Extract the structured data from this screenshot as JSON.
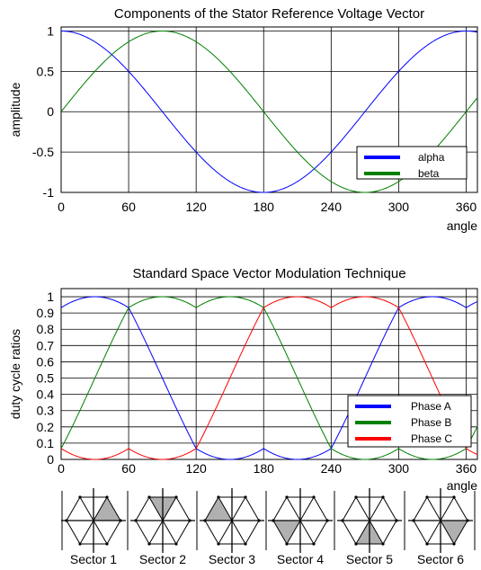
{
  "chart_data": [
    {
      "type": "line",
      "title": "Components of the Stator Reference Voltage Vector",
      "xlabel": "angle",
      "ylabel": "amplitude",
      "xlim": [
        0,
        370
      ],
      "ylim": [
        -1,
        1.05
      ],
      "xticks": [
        "0",
        "60",
        "120",
        "180",
        "240",
        "300",
        "360"
      ],
      "yticks": [
        "1",
        "0.5",
        "0",
        "-0.5",
        "-1"
      ],
      "grid": true,
      "legend_position": "bottom-right",
      "x": [
        0,
        30,
        60,
        90,
        120,
        150,
        180,
        210,
        240,
        270,
        300,
        330,
        360
      ],
      "series": [
        {
          "name": "alpha",
          "color": "#0000ff",
          "values": [
            1,
            0.866,
            0.5,
            0,
            -0.5,
            -0.866,
            -1,
            -0.866,
            -0.5,
            0,
            0.5,
            0.866,
            1
          ]
        },
        {
          "name": "beta",
          "color": "#008000",
          "values": [
            0,
            0.5,
            0.866,
            1,
            0.866,
            0.5,
            0,
            -0.5,
            -0.866,
            -1,
            -0.866,
            -0.5,
            0
          ]
        }
      ]
    },
    {
      "type": "line",
      "title": "Standard Space Vector Modulation Technique",
      "xlabel": "angle",
      "ylabel": "duty cycle ratios",
      "xlim": [
        0,
        370
      ],
      "ylim": [
        0,
        1.05
      ],
      "xticks": [
        "0",
        "60",
        "120",
        "180",
        "240",
        "300",
        "360"
      ],
      "yticks": [
        "1",
        "0.9",
        "0.8",
        "0.7",
        "0.6",
        "0.5",
        "0.4",
        "0.3",
        "0.2",
        "0.1",
        "0"
      ],
      "grid": true,
      "legend_position": "bottom-right",
      "x": [
        0,
        15,
        30,
        45,
        60,
        75,
        90,
        105,
        120,
        135,
        150,
        165,
        180,
        195,
        210,
        225,
        240,
        255,
        270,
        285,
        300,
        315,
        330,
        345,
        360
      ],
      "series": [
        {
          "name": "Phase A",
          "color": "#0000ff",
          "values": [
            0.933,
            0.983,
            1.0,
            0.983,
            0.933,
            0.741,
            0.5,
            0.259,
            0.067,
            0.017,
            0.0,
            0.017,
            0.067,
            0.017,
            0.0,
            0.017,
            0.067,
            0.259,
            0.5,
            0.741,
            0.933,
            0.983,
            1.0,
            0.983,
            0.933
          ]
        },
        {
          "name": "Phase B",
          "color": "#008000",
          "values": [
            0.067,
            0.259,
            0.5,
            0.741,
            0.933,
            0.983,
            1.0,
            0.983,
            0.933,
            0.983,
            1.0,
            0.983,
            0.933,
            0.741,
            0.5,
            0.259,
            0.067,
            0.017,
            0.0,
            0.017,
            0.067,
            0.017,
            0.0,
            0.017,
            0.067
          ]
        },
        {
          "name": "Phase C",
          "color": "#ff0000",
          "values": [
            0.067,
            0.017,
            0.0,
            0.017,
            0.067,
            0.017,
            0.0,
            0.017,
            0.067,
            0.259,
            0.5,
            0.741,
            0.933,
            0.983,
            1.0,
            0.983,
            0.933,
            0.983,
            1.0,
            0.983,
            0.933,
            0.741,
            0.5,
            0.259,
            0.067
          ]
        }
      ]
    }
  ],
  "sectors": {
    "labels": [
      "Sector 1",
      "Sector 2",
      "Sector 3",
      "Sector 4",
      "Sector 5",
      "Sector 6"
    ],
    "fill_color": "#b0b0b0"
  }
}
